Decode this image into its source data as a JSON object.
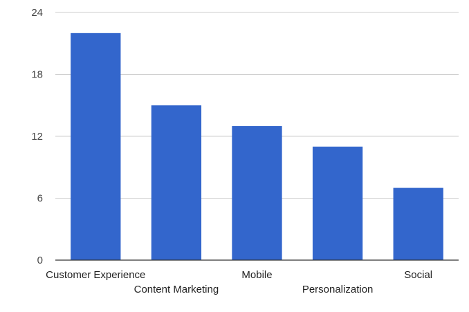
{
  "chart_data": {
    "type": "bar",
    "categories": [
      "Customer Experience",
      "Content Marketing",
      "Mobile",
      "Personalization",
      "Social"
    ],
    "values": [
      22,
      15,
      13,
      11,
      7
    ],
    "title": "",
    "xlabel": "",
    "ylabel": "",
    "ylim": [
      0,
      24
    ],
    "yticks": [
      0,
      6,
      12,
      18,
      24
    ],
    "grid": true,
    "legend": "none",
    "colors": {
      "bar": "#3366cc",
      "grid": "#cccccc",
      "axis": "#333333"
    }
  }
}
